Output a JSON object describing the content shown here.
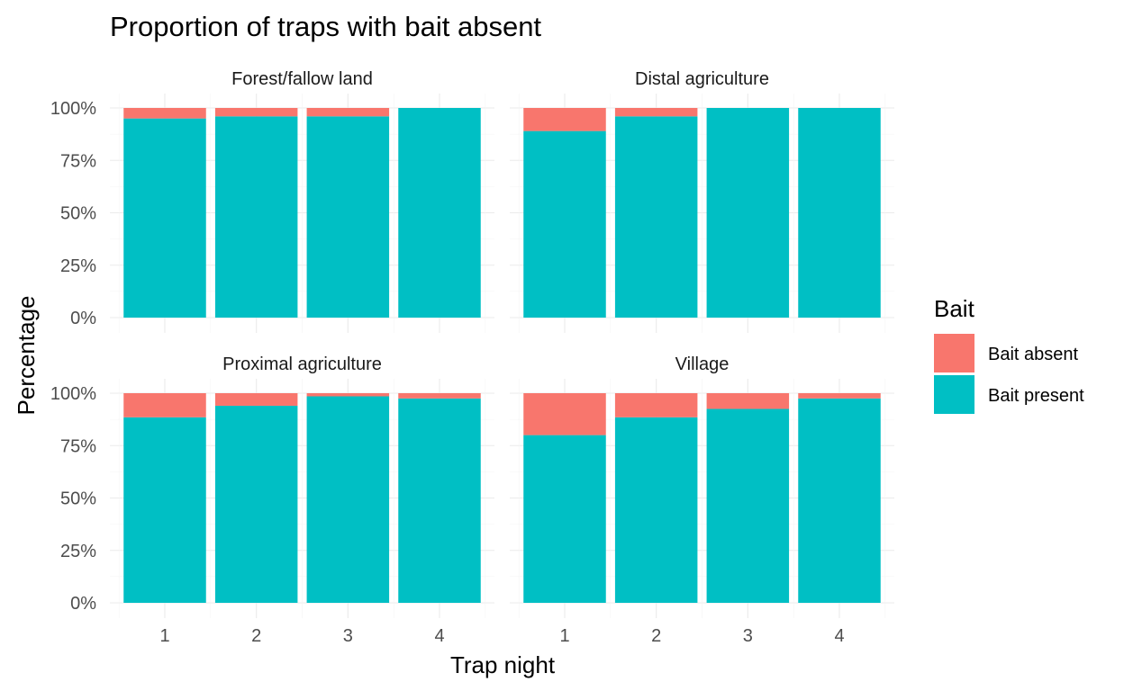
{
  "chart_data": {
    "type": "bar",
    "stacked": true,
    "title": "Proportion of traps with bait absent",
    "xlabel": "Trap night",
    "ylabel": "Percentage",
    "ylim": [
      0,
      1
    ],
    "y_tick_labels": [
      "0%",
      "25%",
      "50%",
      "75%",
      "100%"
    ],
    "y_ticks": [
      0,
      0.25,
      0.5,
      0.75,
      1.0
    ],
    "categories": [
      "1",
      "2",
      "3",
      "4"
    ],
    "grid": true,
    "legend": {
      "title": "Bait",
      "position": "right",
      "entries": [
        {
          "label": "Bait absent",
          "color": "#F8766D"
        },
        {
          "label": "Bait present",
          "color": "#00BFC4"
        }
      ]
    },
    "facets": [
      {
        "label": "Forest/fallow land",
        "series": [
          {
            "name": "Bait absent",
            "values": [
              0.05,
              0.04,
              0.04,
              0.0
            ]
          },
          {
            "name": "Bait present",
            "values": [
              0.95,
              0.96,
              0.96,
              1.0
            ]
          }
        ]
      },
      {
        "label": "Distal agriculture",
        "series": [
          {
            "name": "Bait absent",
            "values": [
              0.11,
              0.04,
              0.0,
              0.0
            ]
          },
          {
            "name": "Bait present",
            "values": [
              0.89,
              0.96,
              1.0,
              1.0
            ]
          }
        ]
      },
      {
        "label": "Proximal agriculture",
        "series": [
          {
            "name": "Bait absent",
            "values": [
              0.115,
              0.06,
              0.015,
              0.025
            ]
          },
          {
            "name": "Bait present",
            "values": [
              0.885,
              0.94,
              0.985,
              0.975
            ]
          }
        ]
      },
      {
        "label": "Village",
        "series": [
          {
            "name": "Bait absent",
            "values": [
              0.2,
              0.115,
              0.075,
              0.025
            ]
          },
          {
            "name": "Bait present",
            "values": [
              0.8,
              0.885,
              0.925,
              0.975
            ]
          }
        ]
      }
    ]
  }
}
